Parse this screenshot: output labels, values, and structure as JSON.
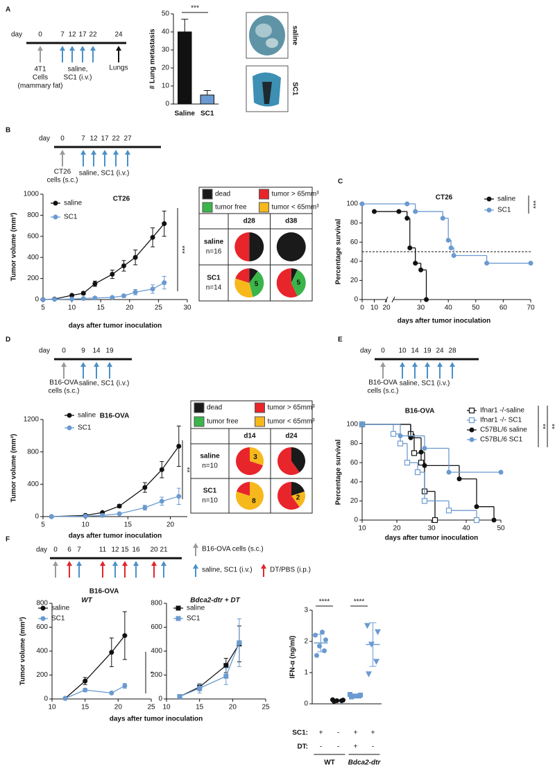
{
  "panels": [
    "A",
    "B",
    "C",
    "D",
    "E",
    "F"
  ],
  "timelines": [
    {
      "label": "day",
      "days": [
        0,
        7,
        12,
        17,
        22,
        24
      ],
      "arrows": [
        "#9a9a9a",
        "#4a90c8",
        "#4a90c8",
        "#4a90c8",
        "#4a90c8",
        "#111111"
      ],
      "notes": [
        [
          "4T1",
          "Cells",
          "(mammary fat)"
        ],
        [
          "saline,",
          "SC1 (i.v.)"
        ],
        [
          "Lungs"
        ]
      ]
    },
    {
      "label": "day",
      "days": [
        0,
        7,
        12,
        17,
        22,
        27
      ],
      "arrows": [
        "#9a9a9a",
        "#4a90c8",
        "#4a90c8",
        "#4a90c8",
        "#4a90c8",
        "#4a90c8"
      ],
      "notes": [
        [
          "CT26",
          "cells (s.c.)"
        ],
        [
          "saline, SC1 (i.v.)"
        ]
      ]
    },
    {
      "label": "day",
      "days": [
        0,
        9,
        14,
        19
      ],
      "arrows": [
        "#9a9a9a",
        "#4a90c8",
        "#4a90c8",
        "#4a90c8"
      ],
      "notes": [
        [
          "B16-OVA",
          "cells (s.c.)"
        ],
        [
          "saline, SC1 (i.v.)"
        ]
      ]
    },
    {
      "label": "day",
      "days": [
        0,
        10,
        14,
        19,
        24,
        28
      ],
      "arrows": [
        "#9a9a9a",
        "#4a90c8",
        "#4a90c8",
        "#4a90c8",
        "#4a90c8",
        "#4a90c8"
      ],
      "notes": [
        [
          "B16-OVA",
          "cells (s.c.)"
        ],
        [
          "saline, SC1 (i.v.)"
        ]
      ]
    },
    {
      "label": "day",
      "days": [
        0,
        6,
        7,
        11,
        12,
        15,
        16,
        20,
        21
      ],
      "arrows": [
        "#9a9a9a",
        "#e0262b",
        "#4a90c8",
        "#e0262b",
        "#4a90c8",
        "#e0262b",
        "#4a90c8",
        "#e0262b",
        "#4a90c8"
      ],
      "notes": []
    }
  ],
  "timeline_legend": [
    {
      "color": "#9a9a9a",
      "text": "B16-OVA cells (s.c.)"
    },
    {
      "color": "#4a90c8",
      "text": "saline, SC1 (i.v.)"
    },
    {
      "color": "#e0262b",
      "text": "DT/PBS (i.p.)"
    }
  ],
  "photos": [
    "saline",
    "SC1"
  ],
  "panel_f": {
    "title": "B16-OVA",
    "xlabel": "days after tumor inoculation"
  },
  "pie_tables": [
    {
      "legend": [
        {
          "label": "dead",
          "color": "#1a1a1a"
        },
        {
          "label": "tumor > 65mm³",
          "color": "#e8252a"
        },
        {
          "label": "tumor free",
          "color": "#3ab54a"
        },
        {
          "label": "tumor < 65mm³",
          "color": "#f7b81c"
        }
      ],
      "columns": [
        "d28",
        "d38"
      ],
      "rows": [
        {
          "label": "saline",
          "n": "n=16",
          "pies": [
            {
              "values": [
                50,
                50,
                0,
                0
              ]
            },
            {
              "values": [
                100,
                0,
                0,
                0
              ]
            }
          ]
        },
        {
          "label": "SC1",
          "n": "n=14",
          "pies": [
            {
              "values": [
                10,
                20,
                36,
                34
              ],
              "labels": [
                null,
                null,
                "5",
                null
              ]
            },
            {
              "values": [
                7,
                57,
                36,
                0
              ],
              "labels": [
                null,
                null,
                "5",
                null
              ]
            }
          ]
        }
      ]
    },
    {
      "legend": [
        {
          "label": "dead",
          "color": "#1a1a1a"
        },
        {
          "label": "tumor > 65mm³",
          "color": "#e8252a"
        },
        {
          "label": "tumor free",
          "color": "#3ab54a"
        },
        {
          "label": "tumor < 65mm³",
          "color": "#f7b81c"
        }
      ],
      "columns": [
        "d14",
        "d24"
      ],
      "rows": [
        {
          "label": "saline",
          "n": "n=10",
          "pies": [
            {
              "values": [
                0,
                70,
                0,
                30
              ],
              "labels": [
                null,
                null,
                null,
                "3"
              ]
            },
            {
              "values": [
                40,
                60,
                0,
                0
              ]
            }
          ]
        },
        {
          "label": "SC1",
          "n": "n=10",
          "pies": [
            {
              "values": [
                0,
                20,
                0,
                80
              ],
              "labels": [
                null,
                null,
                null,
                "8"
              ]
            },
            {
              "values": [
                20,
                60,
                0,
                20
              ],
              "labels": [
                null,
                null,
                null,
                "2"
              ]
            }
          ]
        }
      ]
    }
  ],
  "chart_data": [
    {
      "type": "bar",
      "ylabel": "# Lung metastasis",
      "categories": [
        "Saline",
        "SC1"
      ],
      "values": [
        40,
        5
      ],
      "errors": [
        7,
        2.5
      ],
      "colors": [
        "#111111",
        "#6a9ad0"
      ],
      "ylim": [
        0,
        50
      ],
      "yticks": [
        0,
        10,
        20,
        30,
        40,
        50
      ],
      "significance": [
        "***"
      ]
    },
    {
      "type": "line",
      "title": "CT26",
      "xlabel": "days after tumor inoculation",
      "ylabel": "Tumor volume (mm³)",
      "x": [
        5,
        7,
        10,
        12,
        14,
        17,
        19,
        21,
        24,
        26
      ],
      "series": [
        {
          "name": "saline",
          "color": "#111111",
          "marker": "circle",
          "values": [
            0,
            5,
            40,
            60,
            150,
            240,
            320,
            400,
            590,
            720
          ],
          "errors": [
            0,
            3,
            10,
            15,
            25,
            40,
            50,
            70,
            90,
            120
          ]
        },
        {
          "name": "SC1",
          "color": "#6a9ad0",
          "marker": "circle",
          "values": [
            0,
            2,
            5,
            10,
            15,
            20,
            35,
            70,
            100,
            160
          ],
          "errors": [
            0,
            2,
            3,
            5,
            5,
            10,
            15,
            25,
            40,
            60
          ]
        }
      ],
      "xlim": [
        5,
        30
      ],
      "xticks": [
        5,
        10,
        15,
        20,
        25,
        30
      ],
      "ylim": [
        0,
        1000
      ],
      "yticks": [
        0,
        200,
        400,
        600,
        800,
        1000
      ],
      "significance": [
        "***"
      ]
    },
    {
      "type": "survival",
      "title": "CT26",
      "xlabel": "days after tumor inoculation",
      "ylabel": "Percentage survival",
      "reference_line": 50,
      "series": [
        {
          "name": "saline",
          "color": "#111111",
          "marker": "circle",
          "x": [
            10,
            22,
            25,
            26,
            28,
            30,
            32
          ],
          "values": [
            92,
            92,
            85,
            54,
            38,
            31,
            0
          ]
        },
        {
          "name": "SC1",
          "color": "#6a9ad0",
          "marker": "circle",
          "x": [
            0,
            25,
            28,
            38,
            40,
            41,
            42,
            54,
            70
          ],
          "values": [
            100,
            100,
            92,
            85,
            62,
            54,
            46,
            38,
            38
          ]
        }
      ],
      "xlim": [
        0,
        70
      ],
      "xbreak": 20,
      "xticks": [
        0,
        10,
        20,
        30,
        40,
        50,
        60,
        70
      ],
      "ylim": [
        0,
        100
      ],
      "yticks": [
        0,
        20,
        40,
        60,
        80,
        100
      ],
      "significance": [
        "***"
      ]
    },
    {
      "type": "line",
      "title": "B16-OVA",
      "xlabel": "days after tumor inoculation",
      "ylabel": "Tumor volume (mm³)",
      "x": [
        6,
        10,
        12,
        14,
        17,
        19,
        21
      ],
      "series": [
        {
          "name": "saline",
          "color": "#111111",
          "marker": "circle",
          "values": [
            0,
            15,
            50,
            130,
            360,
            580,
            870
          ],
          "errors": [
            0,
            5,
            10,
            20,
            60,
            100,
            250
          ]
        },
        {
          "name": "SC1",
          "color": "#6a9ad0",
          "marker": "circle",
          "values": [
            0,
            5,
            15,
            35,
            110,
            190,
            250
          ],
          "errors": [
            0,
            3,
            5,
            10,
            30,
            50,
            100
          ]
        }
      ],
      "xlim": [
        5,
        22
      ],
      "xticks": [
        5,
        10,
        15,
        20
      ],
      "ylim": [
        0,
        1200
      ],
      "yticks": [
        0,
        400,
        800,
        1200
      ],
      "significance": [
        "**"
      ]
    },
    {
      "type": "survival",
      "title": "B16-OVA",
      "xlabel": "days after tumor inoculation",
      "ylabel": "Percentage survival",
      "series": [
        {
          "name": "Ifnar1 -/-saline",
          "color": "#111111",
          "marker": "open-square",
          "x": [
            10,
            24,
            25,
            27,
            28,
            31
          ],
          "values": [
            100,
            90,
            70,
            60,
            30,
            0
          ]
        },
        {
          "name": "Ifnar1 -/- SC1",
          "color": "#6a9ad0",
          "marker": "open-square",
          "x": [
            10,
            19,
            21,
            23,
            26,
            28,
            35,
            43
          ],
          "values": [
            100,
            90,
            80,
            60,
            50,
            20,
            10,
            0
          ]
        },
        {
          "name": "C57BL/6 saline",
          "color": "#111111",
          "marker": "circle",
          "x": [
            10,
            24,
            27,
            28,
            38,
            43,
            48
          ],
          "values": [
            100,
            86,
            71,
            57,
            43,
            14,
            0
          ]
        },
        {
          "name": "C57BL/6 SC1",
          "color": "#6a9ad0",
          "marker": "circle",
          "x": [
            10,
            21,
            28,
            35,
            50
          ],
          "values": [
            100,
            88,
            75,
            50,
            50
          ]
        }
      ],
      "xlim": [
        10,
        50
      ],
      "xticks": [
        10,
        20,
        30,
        40,
        50
      ],
      "ylim": [
        0,
        100
      ],
      "yticks": [
        0,
        20,
        40,
        60,
        80,
        100
      ],
      "significance": [
        "**",
        "**"
      ]
    },
    {
      "type": "line",
      "title": "WT",
      "ylabel": "Tumor volume (mm³)",
      "x": [
        12,
        15,
        19,
        21
      ],
      "series": [
        {
          "name": "saline",
          "color": "#111111",
          "marker": "circle",
          "values": [
            5,
            150,
            390,
            530
          ],
          "errors": [
            5,
            30,
            120,
            200
          ]
        },
        {
          "name": "SC1",
          "color": "#6a9ad0",
          "marker": "circle",
          "values": [
            5,
            75,
            50,
            110
          ],
          "errors": [
            5,
            15,
            10,
            20
          ]
        }
      ],
      "xlim": [
        10,
        25
      ],
      "xticks": [
        10,
        15,
        20,
        25
      ],
      "ylim": [
        0,
        800
      ],
      "yticks": [
        0,
        200,
        400,
        600,
        800
      ],
      "significance": [
        "*"
      ]
    },
    {
      "type": "line",
      "title": "Bdca2-dtr + DT",
      "x": [
        12,
        15,
        19,
        21
      ],
      "series": [
        {
          "name": "saline",
          "color": "#111111",
          "marker": "square",
          "values": [
            20,
            100,
            280,
            460
          ],
          "errors": [
            10,
            30,
            60,
            150
          ]
        },
        {
          "name": "SC1",
          "color": "#6a9ad0",
          "marker": "square",
          "values": [
            20,
            90,
            190,
            470
          ],
          "errors": [
            10,
            40,
            70,
            200
          ]
        }
      ],
      "xlim": [
        10,
        25
      ],
      "xticks": [
        10,
        15,
        20,
        25
      ],
      "ylim": [
        0,
        800
      ],
      "yticks": [
        0,
        200,
        400,
        600,
        800
      ]
    },
    {
      "type": "strip",
      "ylabel": "IFN-α (ng/ml)",
      "ylim": [
        0,
        3
      ],
      "yticks": [
        0,
        1,
        2,
        3
      ],
      "groups": [
        {
          "color": "#6a9ad0",
          "marker": "circle",
          "values": [
            1.55,
            1.7,
            1.85,
            2.05,
            2.2,
            2.3
          ],
          "mean": 1.95,
          "error": 0.28
        },
        {
          "color": "#111111",
          "marker": "circle",
          "values": [
            0.08,
            0.1,
            0.1,
            0.12,
            0.13
          ],
          "mean": 0.11,
          "error": 0.02
        },
        {
          "color": "#6a9ad0",
          "marker": "square",
          "values": [
            0.22,
            0.25,
            0.25,
            0.28,
            0.3
          ],
          "mean": 0.26,
          "error": 0.03
        },
        {
          "color": "#6a9ad0",
          "marker": "triangle",
          "values": [
            0.95,
            1.35,
            1.9,
            2.3,
            2.5
          ],
          "mean": 1.9,
          "error": 0.7
        }
      ],
      "significance": [
        "****",
        "****"
      ],
      "conditions": [
        {
          "label": "SC1:",
          "marks": [
            "+",
            "-",
            "+",
            "+"
          ]
        },
        {
          "label": "DT:",
          "marks": [
            "-",
            "-",
            "+",
            "-"
          ]
        }
      ],
      "genotypes": [
        "WT",
        "Bdca2-dtr"
      ]
    }
  ]
}
